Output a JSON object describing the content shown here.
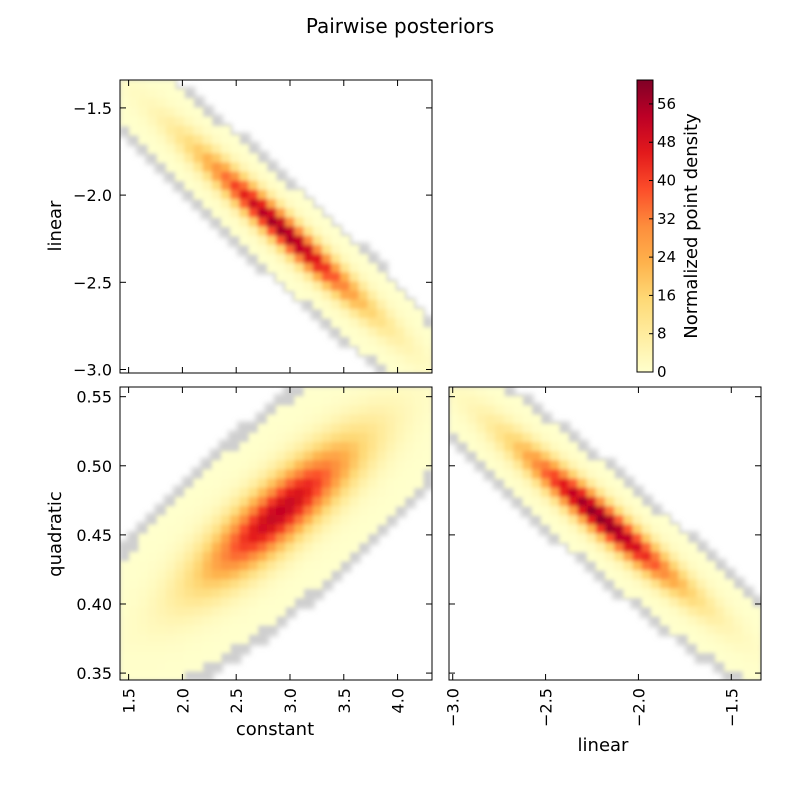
{
  "title": "Pairwise posteriors",
  "colormap": {
    "name": "YlOrRd",
    "stops": [
      "#ffffcc",
      "#ffeda0",
      "#fed976",
      "#feb24c",
      "#fd8d3c",
      "#fc4e2a",
      "#e31a1c",
      "#bd0026",
      "#800026"
    ],
    "halo_color": "#cfcfcf"
  },
  "chart_data": [
    {
      "type": "heatmap",
      "panel": "linear-vs-constant",
      "xlabel": "",
      "ylabel": "linear",
      "xlim": [
        1.42,
        4.32
      ],
      "ylim": [
        -3.02,
        -1.34
      ],
      "xticks": [
        1.5,
        2.0,
        2.5,
        3.0,
        3.5,
        4.0
      ],
      "xtick_labels": [],
      "yticks": [
        -1.5,
        -2.0,
        -2.5,
        -3.0
      ],
      "ytick_labels": [
        "−1.5",
        "−2.0",
        "−2.5",
        "−3.0"
      ],
      "density": {
        "center": [
          2.93,
          -2.2
        ],
        "sd": [
          0.52,
          0.3
        ],
        "rho": -0.97,
        "peak": 58
      }
    },
    {
      "type": "heatmap",
      "panel": "quadratic-vs-constant",
      "xlabel": "constant",
      "ylabel": "quadratic",
      "xlim": [
        1.42,
        4.32
      ],
      "ylim": [
        0.345,
        0.557
      ],
      "xticks": [
        1.5,
        2.0,
        2.5,
        3.0,
        3.5,
        4.0
      ],
      "xtick_labels": [
        "1.5",
        "2.0",
        "2.5",
        "3.0",
        "3.5",
        "4.0"
      ],
      "yticks": [
        0.35,
        0.4,
        0.45,
        0.5,
        0.55
      ],
      "ytick_labels": [
        "0.35",
        "0.40",
        "0.45",
        "0.50",
        "0.55"
      ],
      "density": {
        "center": [
          2.9,
          0.466
        ],
        "sd": [
          0.5,
          0.035
        ],
        "rho": 0.85,
        "peak": 52
      }
    },
    {
      "type": "heatmap",
      "panel": "quadratic-vs-linear",
      "xlabel": "linear",
      "ylabel": "",
      "xlim": [
        -3.02,
        -1.34
      ],
      "ylim": [
        0.345,
        0.557
      ],
      "xticks": [
        -3.0,
        -2.5,
        -2.0,
        -1.5
      ],
      "xtick_labels": [
        "−3.0",
        "−2.5",
        "−2.0",
        "−1.5"
      ],
      "yticks": [
        0.35,
        0.4,
        0.45,
        0.5,
        0.55
      ],
      "ytick_labels": [],
      "density": {
        "center": [
          -2.2,
          0.462
        ],
        "sd": [
          0.3,
          0.035
        ],
        "rho": -0.96,
        "peak": 60
      }
    }
  ],
  "colorbar": {
    "label": "Normalized point density",
    "range": [
      0,
      61
    ],
    "ticks": [
      0,
      8,
      16,
      24,
      32,
      40,
      48,
      56
    ],
    "tick_labels": [
      "0",
      "8",
      "16",
      "24",
      "32",
      "40",
      "48",
      "56"
    ]
  }
}
